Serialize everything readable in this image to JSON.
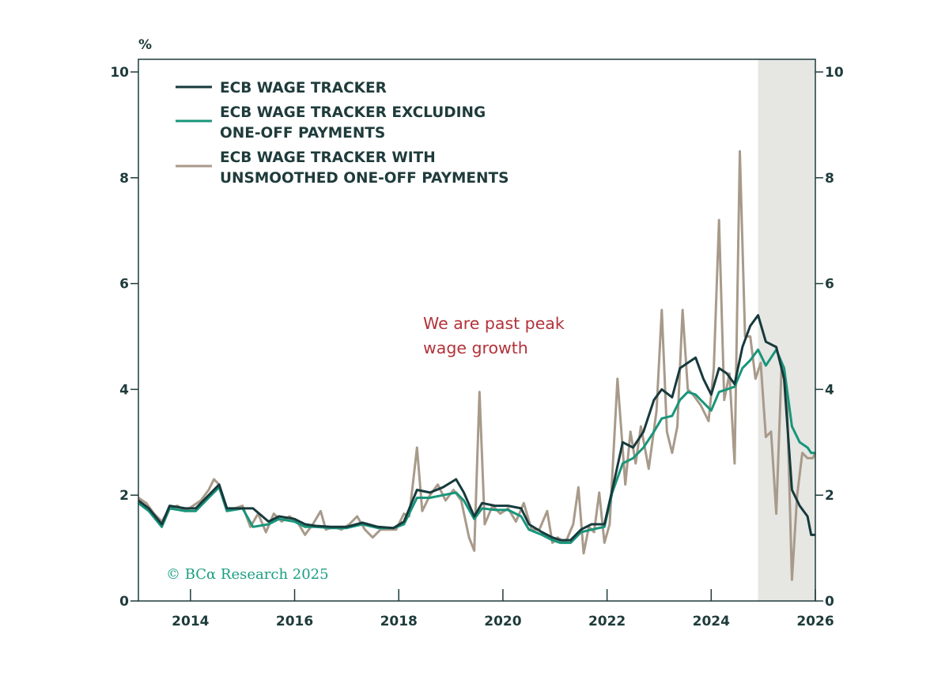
{
  "chart_data": {
    "type": "line",
    "title": "",
    "xlabel": "",
    "ylabel": "%",
    "xlim": [
      2013,
      2026
    ],
    "ylim": [
      0,
      10
    ],
    "x_ticks": [
      "2014",
      "2016",
      "2018",
      "2020",
      "2022",
      "2024",
      "2026"
    ],
    "y_ticks": [
      "0",
      "2",
      "4",
      "6",
      "8",
      "10"
    ],
    "shaded_region": [
      2024.9,
      2026
    ],
    "legend": "top-left",
    "annotation": [
      "We are past peak",
      "wage growth"
    ],
    "watermark": "© BCα Research 2025",
    "series": [
      {
        "name": "ECB WAGE TRACKER",
        "color": "#173a3c",
        "points": [
          [
            2013.0,
            1.9
          ],
          [
            2013.2,
            1.75
          ],
          [
            2013.45,
            1.45
          ],
          [
            2013.6,
            1.8
          ],
          [
            2013.9,
            1.75
          ],
          [
            2014.1,
            1.75
          ],
          [
            2014.35,
            2.0
          ],
          [
            2014.55,
            2.2
          ],
          [
            2014.7,
            1.75
          ],
          [
            2015.0,
            1.75
          ],
          [
            2015.2,
            1.75
          ],
          [
            2015.5,
            1.5
          ],
          [
            2015.7,
            1.6
          ],
          [
            2016.0,
            1.55
          ],
          [
            2016.2,
            1.45
          ],
          [
            2016.4,
            1.42
          ],
          [
            2016.7,
            1.4
          ],
          [
            2017.0,
            1.4
          ],
          [
            2017.3,
            1.48
          ],
          [
            2017.6,
            1.4
          ],
          [
            2017.9,
            1.38
          ],
          [
            2018.1,
            1.5
          ],
          [
            2018.35,
            2.1
          ],
          [
            2018.6,
            2.05
          ],
          [
            2018.85,
            2.15
          ],
          [
            2019.1,
            2.3
          ],
          [
            2019.25,
            2.05
          ],
          [
            2019.45,
            1.6
          ],
          [
            2019.6,
            1.85
          ],
          [
            2019.85,
            1.8
          ],
          [
            2020.1,
            1.8
          ],
          [
            2020.35,
            1.75
          ],
          [
            2020.5,
            1.45
          ],
          [
            2020.75,
            1.3
          ],
          [
            2020.95,
            1.2
          ],
          [
            2021.1,
            1.15
          ],
          [
            2021.3,
            1.15
          ],
          [
            2021.5,
            1.35
          ],
          [
            2021.7,
            1.45
          ],
          [
            2021.95,
            1.45
          ],
          [
            2022.1,
            2.1
          ],
          [
            2022.3,
            3.0
          ],
          [
            2022.5,
            2.9
          ],
          [
            2022.7,
            3.2
          ],
          [
            2022.9,
            3.8
          ],
          [
            2023.05,
            4.0
          ],
          [
            2023.25,
            3.85
          ],
          [
            2023.4,
            4.4
          ],
          [
            2023.55,
            4.5
          ],
          [
            2023.7,
            4.6
          ],
          [
            2023.85,
            4.2
          ],
          [
            2024.0,
            3.9
          ],
          [
            2024.15,
            4.4
          ],
          [
            2024.3,
            4.3
          ],
          [
            2024.45,
            4.1
          ],
          [
            2024.6,
            4.8
          ],
          [
            2024.75,
            5.2
          ],
          [
            2024.9,
            5.4
          ],
          [
            2025.05,
            4.9
          ],
          [
            2025.25,
            4.8
          ],
          [
            2025.4,
            4.2
          ],
          [
            2025.55,
            2.1
          ],
          [
            2025.7,
            1.8
          ],
          [
            2025.85,
            1.6
          ],
          [
            2025.92,
            1.25
          ],
          [
            2026.0,
            1.25
          ]
        ]
      },
      {
        "name": "ECB WAGE TRACKER EXCLUDING ONE-OFF PAYMENTS",
        "color": "#18957a",
        "points": [
          [
            2013.0,
            1.85
          ],
          [
            2013.2,
            1.7
          ],
          [
            2013.45,
            1.4
          ],
          [
            2013.6,
            1.75
          ],
          [
            2013.9,
            1.7
          ],
          [
            2014.1,
            1.7
          ],
          [
            2014.35,
            1.95
          ],
          [
            2014.55,
            2.15
          ],
          [
            2014.7,
            1.7
          ],
          [
            2015.0,
            1.75
          ],
          [
            2015.2,
            1.4
          ],
          [
            2015.5,
            1.45
          ],
          [
            2015.7,
            1.55
          ],
          [
            2016.0,
            1.5
          ],
          [
            2016.2,
            1.4
          ],
          [
            2016.4,
            1.4
          ],
          [
            2016.7,
            1.38
          ],
          [
            2017.0,
            1.38
          ],
          [
            2017.3,
            1.45
          ],
          [
            2017.6,
            1.38
          ],
          [
            2017.9,
            1.38
          ],
          [
            2018.1,
            1.45
          ],
          [
            2018.35,
            1.95
          ],
          [
            2018.6,
            1.95
          ],
          [
            2018.85,
            2.0
          ],
          [
            2019.1,
            2.05
          ],
          [
            2019.25,
            1.9
          ],
          [
            2019.45,
            1.55
          ],
          [
            2019.6,
            1.75
          ],
          [
            2019.85,
            1.72
          ],
          [
            2020.1,
            1.72
          ],
          [
            2020.35,
            1.6
          ],
          [
            2020.5,
            1.35
          ],
          [
            2020.75,
            1.25
          ],
          [
            2020.95,
            1.15
          ],
          [
            2021.1,
            1.1
          ],
          [
            2021.3,
            1.1
          ],
          [
            2021.5,
            1.3
          ],
          [
            2021.7,
            1.35
          ],
          [
            2021.95,
            1.4
          ],
          [
            2022.1,
            2.05
          ],
          [
            2022.3,
            2.6
          ],
          [
            2022.5,
            2.7
          ],
          [
            2022.7,
            2.9
          ],
          [
            2022.9,
            3.2
          ],
          [
            2023.05,
            3.45
          ],
          [
            2023.25,
            3.5
          ],
          [
            2023.4,
            3.8
          ],
          [
            2023.55,
            3.95
          ],
          [
            2023.7,
            3.9
          ],
          [
            2023.85,
            3.75
          ],
          [
            2024.0,
            3.6
          ],
          [
            2024.15,
            3.95
          ],
          [
            2024.3,
            4.0
          ],
          [
            2024.45,
            4.05
          ],
          [
            2024.6,
            4.4
          ],
          [
            2024.75,
            4.55
          ],
          [
            2024.9,
            4.75
          ],
          [
            2025.05,
            4.45
          ],
          [
            2025.25,
            4.75
          ],
          [
            2025.4,
            4.4
          ],
          [
            2025.55,
            3.3
          ],
          [
            2025.7,
            3.0
          ],
          [
            2025.85,
            2.9
          ],
          [
            2025.92,
            2.8
          ],
          [
            2026.0,
            2.8
          ]
        ]
      },
      {
        "name": "ECB WAGE TRACKER WITH UNSMOOTHED ONE-OFF PAYMENTS",
        "color": "#a89a8a",
        "points": [
          [
            2013.0,
            1.95
          ],
          [
            2013.15,
            1.85
          ],
          [
            2013.3,
            1.65
          ],
          [
            2013.45,
            1.5
          ],
          [
            2013.6,
            1.75
          ],
          [
            2013.75,
            1.8
          ],
          [
            2013.9,
            1.7
          ],
          [
            2014.05,
            1.8
          ],
          [
            2014.2,
            1.9
          ],
          [
            2014.35,
            2.1
          ],
          [
            2014.45,
            2.3
          ],
          [
            2014.55,
            2.2
          ],
          [
            2014.7,
            1.75
          ],
          [
            2014.85,
            1.75
          ],
          [
            2015.0,
            1.8
          ],
          [
            2015.15,
            1.4
          ],
          [
            2015.3,
            1.65
          ],
          [
            2015.45,
            1.3
          ],
          [
            2015.6,
            1.65
          ],
          [
            2015.75,
            1.5
          ],
          [
            2015.9,
            1.6
          ],
          [
            2016.05,
            1.5
          ],
          [
            2016.2,
            1.25
          ],
          [
            2016.35,
            1.45
          ],
          [
            2016.5,
            1.7
          ],
          [
            2016.6,
            1.35
          ],
          [
            2016.75,
            1.4
          ],
          [
            2016.9,
            1.35
          ],
          [
            2017.05,
            1.45
          ],
          [
            2017.2,
            1.6
          ],
          [
            2017.35,
            1.35
          ],
          [
            2017.5,
            1.2
          ],
          [
            2017.65,
            1.35
          ],
          [
            2017.8,
            1.35
          ],
          [
            2017.95,
            1.35
          ],
          [
            2018.1,
            1.65
          ],
          [
            2018.2,
            1.6
          ],
          [
            2018.35,
            2.9
          ],
          [
            2018.45,
            1.7
          ],
          [
            2018.6,
            2.0
          ],
          [
            2018.75,
            2.2
          ],
          [
            2018.9,
            1.9
          ],
          [
            2019.05,
            2.1
          ],
          [
            2019.2,
            1.9
          ],
          [
            2019.35,
            1.2
          ],
          [
            2019.45,
            0.95
          ],
          [
            2019.55,
            3.95
          ],
          [
            2019.65,
            1.45
          ],
          [
            2019.8,
            1.8
          ],
          [
            2019.95,
            1.65
          ],
          [
            2020.1,
            1.75
          ],
          [
            2020.25,
            1.5
          ],
          [
            2020.4,
            1.85
          ],
          [
            2020.55,
            1.35
          ],
          [
            2020.7,
            1.35
          ],
          [
            2020.85,
            1.7
          ],
          [
            2020.95,
            1.1
          ],
          [
            2021.05,
            1.2
          ],
          [
            2021.2,
            1.1
          ],
          [
            2021.35,
            1.45
          ],
          [
            2021.45,
            2.15
          ],
          [
            2021.55,
            0.9
          ],
          [
            2021.65,
            1.4
          ],
          [
            2021.75,
            1.3
          ],
          [
            2021.85,
            2.05
          ],
          [
            2021.95,
            1.1
          ],
          [
            2022.05,
            1.45
          ],
          [
            2022.2,
            4.2
          ],
          [
            2022.35,
            2.2
          ],
          [
            2022.45,
            3.2
          ],
          [
            2022.55,
            2.6
          ],
          [
            2022.65,
            3.3
          ],
          [
            2022.8,
            2.5
          ],
          [
            2022.95,
            3.6
          ],
          [
            2023.05,
            5.5
          ],
          [
            2023.15,
            3.2
          ],
          [
            2023.25,
            2.8
          ],
          [
            2023.35,
            3.3
          ],
          [
            2023.45,
            5.5
          ],
          [
            2023.55,
            4.0
          ],
          [
            2023.65,
            3.9
          ],
          [
            2023.8,
            3.7
          ],
          [
            2023.95,
            3.4
          ],
          [
            2024.05,
            4.4
          ],
          [
            2024.15,
            7.2
          ],
          [
            2024.25,
            3.8
          ],
          [
            2024.35,
            4.3
          ],
          [
            2024.45,
            2.6
          ],
          [
            2024.55,
            8.5
          ],
          [
            2024.65,
            5.0
          ],
          [
            2024.75,
            5.0
          ],
          [
            2024.85,
            4.2
          ],
          [
            2024.95,
            4.5
          ],
          [
            2025.05,
            3.1
          ],
          [
            2025.15,
            3.2
          ],
          [
            2025.25,
            1.65
          ],
          [
            2025.35,
            4.4
          ],
          [
            2025.45,
            4.0
          ],
          [
            2025.55,
            0.4
          ],
          [
            2025.65,
            2.0
          ],
          [
            2025.75,
            2.8
          ],
          [
            2025.85,
            2.7
          ],
          [
            2025.95,
            2.7
          ],
          [
            2026.0,
            2.8
          ]
        ]
      }
    ]
  }
}
